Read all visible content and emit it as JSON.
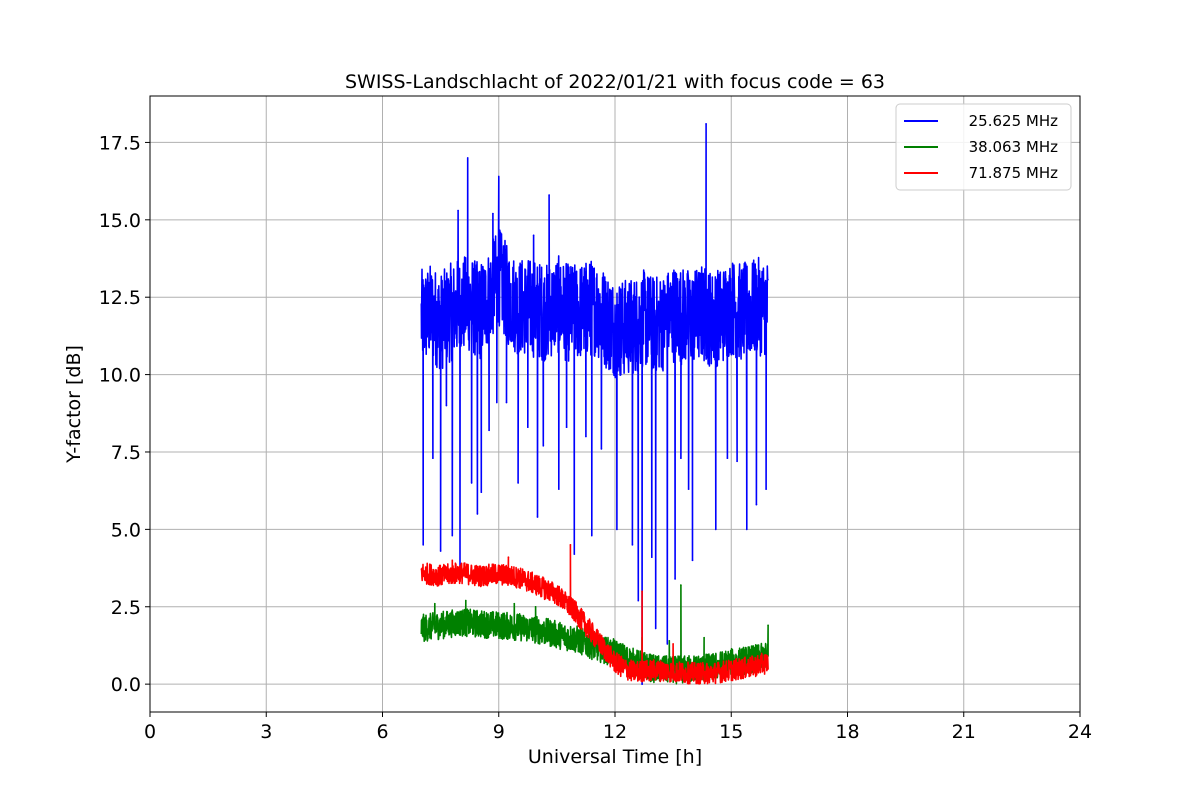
{
  "chart_data": {
    "type": "line",
    "title": "SWISS-Landschlacht of 2022/01/21 with focus code = 63",
    "xlabel": "Universal Time [h]",
    "ylabel": "Y-factor [dB]",
    "xlim": [
      0,
      24
    ],
    "ylim": [
      -0.9,
      19.0
    ],
    "xticks": [
      0,
      3,
      6,
      9,
      12,
      15,
      18,
      21,
      24
    ],
    "yticks": [
      0.0,
      2.5,
      5.0,
      7.5,
      10.0,
      12.5,
      15.0,
      17.5
    ],
    "xtick_labels": [
      "0",
      "3",
      "6",
      "9",
      "12",
      "15",
      "18",
      "21",
      "24"
    ],
    "ytick_labels": [
      "0.0",
      "2.5",
      "5.0",
      "7.5",
      "10.0",
      "12.5",
      "15.0",
      "17.5"
    ],
    "grid": true,
    "legend_position": "top-right",
    "series": [
      {
        "name": "25.625 MHz",
        "color": "#0000ff",
        "x": [
          7.0,
          7.25,
          7.5,
          7.75,
          8.0,
          8.25,
          8.5,
          8.75,
          9.0,
          9.25,
          9.5,
          9.75,
          10.0,
          10.25,
          10.5,
          10.75,
          11.0,
          11.25,
          11.5,
          11.75,
          12.0,
          12.25,
          12.5,
          12.75,
          13.0,
          13.25,
          13.5,
          13.75,
          14.0,
          14.25,
          14.5,
          14.75,
          15.0,
          15.25,
          15.5,
          15.75,
          15.95
        ],
        "y": [
          11.8,
          12.0,
          11.7,
          12.0,
          12.2,
          12.3,
          12.0,
          12.5,
          13.2,
          12.5,
          12.2,
          12.2,
          12.1,
          12.0,
          12.3,
          12.0,
          12.0,
          12.1,
          12.2,
          11.8,
          11.5,
          11.5,
          11.6,
          11.8,
          11.6,
          11.7,
          12.0,
          11.9,
          11.8,
          12.0,
          11.8,
          11.9,
          12.2,
          12.0,
          12.1,
          12.2,
          12.2
        ],
        "spikes": [
          {
            "x": 7.05,
            "y": 4.5
          },
          {
            "x": 7.3,
            "y": 7.3
          },
          {
            "x": 7.5,
            "y": 4.3
          },
          {
            "x": 7.65,
            "y": 9.0
          },
          {
            "x": 7.8,
            "y": 4.8
          },
          {
            "x": 7.95,
            "y": 15.3
          },
          {
            "x": 8.0,
            "y": 3.6
          },
          {
            "x": 8.2,
            "y": 17.0
          },
          {
            "x": 8.3,
            "y": 6.5
          },
          {
            "x": 8.45,
            "y": 5.5
          },
          {
            "x": 8.55,
            "y": 6.2
          },
          {
            "x": 8.75,
            "y": 8.2
          },
          {
            "x": 8.85,
            "y": 15.2
          },
          {
            "x": 8.95,
            "y": 9.1
          },
          {
            "x": 9.0,
            "y": 16.4
          },
          {
            "x": 9.2,
            "y": 9.1
          },
          {
            "x": 9.5,
            "y": 6.5
          },
          {
            "x": 9.75,
            "y": 8.3
          },
          {
            "x": 9.9,
            "y": 14.5
          },
          {
            "x": 10.0,
            "y": 5.4
          },
          {
            "x": 10.15,
            "y": 7.7
          },
          {
            "x": 10.3,
            "y": 15.8
          },
          {
            "x": 10.55,
            "y": 6.3
          },
          {
            "x": 10.75,
            "y": 8.3
          },
          {
            "x": 10.95,
            "y": 4.2
          },
          {
            "x": 11.25,
            "y": 8.0
          },
          {
            "x": 11.4,
            "y": 4.8
          },
          {
            "x": 11.65,
            "y": 7.6
          },
          {
            "x": 12.05,
            "y": 5.0
          },
          {
            "x": 12.15,
            "y": 10.0
          },
          {
            "x": 12.45,
            "y": 4.5
          },
          {
            "x": 12.6,
            "y": 2.7
          },
          {
            "x": 12.7,
            "y": 0.0
          },
          {
            "x": 12.95,
            "y": 4.1
          },
          {
            "x": 13.05,
            "y": 1.8
          },
          {
            "x": 13.35,
            "y": 1.3
          },
          {
            "x": 13.55,
            "y": 3.4
          },
          {
            "x": 13.7,
            "y": 7.3
          },
          {
            "x": 13.9,
            "y": 6.3
          },
          {
            "x": 14.0,
            "y": 4.0
          },
          {
            "x": 14.35,
            "y": 18.1
          },
          {
            "x": 14.6,
            "y": 5.0
          },
          {
            "x": 14.9,
            "y": 7.3
          },
          {
            "x": 15.15,
            "y": 7.2
          },
          {
            "x": 15.4,
            "y": 5.0
          },
          {
            "x": 15.65,
            "y": 5.8
          },
          {
            "x": 15.9,
            "y": 6.3
          }
        ]
      },
      {
        "name": "38.063 MHz",
        "color": "#008000",
        "x": [
          7.0,
          7.5,
          8.0,
          8.5,
          9.0,
          9.5,
          10.0,
          10.5,
          11.0,
          11.5,
          12.0,
          12.5,
          13.0,
          13.5,
          14.0,
          14.5,
          15.0,
          15.5,
          15.95
        ],
        "y": [
          1.8,
          1.9,
          2.0,
          1.95,
          1.9,
          1.85,
          1.75,
          1.6,
          1.45,
          1.2,
          1.0,
          0.7,
          0.5,
          0.45,
          0.5,
          0.55,
          0.7,
          0.8,
          0.9
        ],
        "spikes": [
          {
            "x": 7.35,
            "y": 2.6
          },
          {
            "x": 8.15,
            "y": 2.7
          },
          {
            "x": 9.4,
            "y": 2.6
          },
          {
            "x": 9.95,
            "y": 2.5
          },
          {
            "x": 11.0,
            "y": 1.2
          },
          {
            "x": 12.7,
            "y": 1.5
          },
          {
            "x": 13.4,
            "y": 1.4
          },
          {
            "x": 13.7,
            "y": 3.2
          },
          {
            "x": 14.3,
            "y": 1.5
          },
          {
            "x": 15.95,
            "y": 1.9
          }
        ]
      },
      {
        "name": "71.875 MHz",
        "color": "#ff0000",
        "x": [
          7.0,
          7.5,
          8.0,
          8.5,
          9.0,
          9.5,
          10.0,
          10.5,
          11.0,
          11.25,
          11.5,
          11.75,
          12.0,
          12.25,
          12.5,
          13.0,
          13.5,
          14.0,
          14.5,
          15.0,
          15.5,
          15.95
        ],
        "y": [
          3.6,
          3.5,
          3.6,
          3.5,
          3.55,
          3.45,
          3.2,
          2.9,
          2.3,
          1.9,
          1.5,
          1.1,
          0.7,
          0.5,
          0.4,
          0.45,
          0.4,
          0.35,
          0.35,
          0.45,
          0.55,
          0.7
        ],
        "spikes": [
          {
            "x": 7.8,
            "y": 4.0
          },
          {
            "x": 9.25,
            "y": 4.1
          },
          {
            "x": 10.85,
            "y": 4.5
          },
          {
            "x": 12.7,
            "y": 3.0
          },
          {
            "x": 13.5,
            "y": 1.3
          }
        ]
      }
    ]
  }
}
